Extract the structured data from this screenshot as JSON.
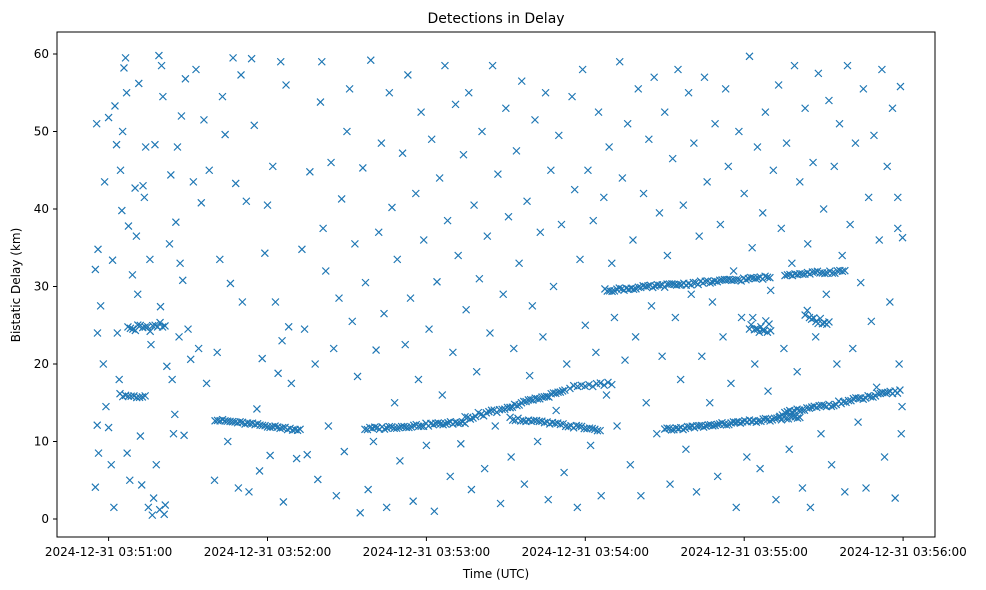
{
  "chart_data": {
    "type": "scatter",
    "title": "Detections in Delay",
    "xlabel": "Time (UTC)",
    "ylabel": "Bistatic Delay (km)",
    "x_unit": "seconds since 2024-12-31 03:51:00",
    "xlim": [
      -19,
      312
    ],
    "ylim": [
      -2.6,
      62.8
    ],
    "grid": false,
    "marker": "x",
    "color": "#1f77b4",
    "x_ticks": [
      {
        "value": 0,
        "label": "2024-12-31 03:51:00"
      },
      {
        "value": 60,
        "label": "2024-12-31 03:52:00"
      },
      {
        "value": 120,
        "label": "2024-12-31 03:53:00"
      },
      {
        "value": 180,
        "label": "2024-12-31 03:54:00"
      },
      {
        "value": 240,
        "label": "2024-12-31 03:55:00"
      },
      {
        "value": 300,
        "label": "2024-12-31 03:56:00"
      }
    ],
    "y_ticks": [
      {
        "value": 0,
        "label": "0"
      },
      {
        "value": 10,
        "label": "10"
      },
      {
        "value": 20,
        "label": "20"
      },
      {
        "value": 30,
        "label": "30"
      },
      {
        "value": 40,
        "label": "40"
      },
      {
        "value": 50,
        "label": "50"
      },
      {
        "value": 60,
        "label": "60"
      }
    ],
    "tracks": [
      {
        "t": [
          4.3,
          13.8
        ],
        "y": [
          16.0,
          15.7
        ],
        "n": 10,
        "spread": 0.2
      },
      {
        "t": [
          7.3,
          21.3
        ],
        "y": [
          24.5,
          25.0
        ],
        "n": 16,
        "spread": 0.6
      },
      {
        "t": [
          40.2,
          72.3
        ],
        "y": [
          12.8,
          11.5
        ],
        "n": 35,
        "spread": 0.15
      },
      {
        "t": [
          96.8,
          134.6
        ],
        "y": [
          11.6,
          12.5
        ],
        "n": 42,
        "spread": 0.2
      },
      {
        "t": [
          134.6,
          151.6
        ],
        "y": [
          13.0,
          14.5
        ],
        "n": 18,
        "spread": 0.3
      },
      {
        "t": [
          151.6,
          172.3
        ],
        "y": [
          14.5,
          16.5
        ],
        "n": 25,
        "spread": 0.2
      },
      {
        "t": [
          151.6,
          185.6
        ],
        "y": [
          13.0,
          11.5
        ],
        "n": 35,
        "spread": 0.2
      },
      {
        "t": [
          174.2,
          190.0
        ],
        "y": [
          17.0,
          17.5
        ],
        "n": 12,
        "spread": 0.2
      },
      {
        "t": [
          187.4,
          249.7
        ],
        "y": [
          29.5,
          31.2
        ],
        "n": 70,
        "spread": 0.2
      },
      {
        "t": [
          255.4,
          278.0
        ],
        "y": [
          31.5,
          32.0
        ],
        "n": 25,
        "spread": 0.2
      },
      {
        "t": [
          210.0,
          261.0
        ],
        "y": [
          11.5,
          13.2
        ],
        "n": 60,
        "spread": 0.2
      },
      {
        "t": [
          253.5,
          298.8
        ],
        "y": [
          13.5,
          16.5
        ],
        "n": 50,
        "spread": 0.25
      },
      {
        "t": [
          242.0,
          250.0
        ],
        "y": [
          25.0,
          25.0
        ],
        "n": 14,
        "spread": 1.0
      },
      {
        "t": [
          263.0,
          272.0
        ],
        "y": [
          26.0,
          26.0
        ],
        "n": 12,
        "spread": 1.0
      }
    ],
    "points": [
      [
        -5,
        4.1
      ],
      [
        -5,
        32.2
      ],
      [
        -4.5,
        51
      ],
      [
        -4.3,
        12.1
      ],
      [
        -4.2,
        24
      ],
      [
        -4,
        34.8
      ],
      [
        -3.8,
        8.5
      ],
      [
        -3,
        27.5
      ],
      [
        -2,
        20
      ],
      [
        -1.5,
        43.5
      ],
      [
        -1,
        14.5
      ],
      [
        0,
        11.8
      ],
      [
        0,
        51.8
      ],
      [
        1,
        7
      ],
      [
        1.5,
        33.4
      ],
      [
        2,
        1.5
      ],
      [
        2.4,
        53.3
      ],
      [
        3,
        48.3
      ],
      [
        3.3,
        24
      ],
      [
        4,
        18
      ],
      [
        4.5,
        45
      ],
      [
        5,
        39.8
      ],
      [
        5.3,
        50
      ],
      [
        5.8,
        58.2
      ],
      [
        6.4,
        59.5
      ],
      [
        6.8,
        55
      ],
      [
        7,
        8.5
      ],
      [
        7.5,
        37.8
      ],
      [
        8,
        5
      ],
      [
        9,
        31.5
      ],
      [
        10,
        42.7
      ],
      [
        10.5,
        36.5
      ],
      [
        11,
        29
      ],
      [
        11.4,
        56.2
      ],
      [
        12,
        10.7
      ],
      [
        12.5,
        4.4
      ],
      [
        13,
        43
      ],
      [
        13.5,
        41.5
      ],
      [
        14,
        48
      ],
      [
        15,
        1.5
      ],
      [
        15.6,
        33.5
      ],
      [
        16,
        22.5
      ],
      [
        16.5,
        0.5
      ],
      [
        17,
        2.7
      ],
      [
        17.5,
        48.3
      ],
      [
        18,
        7
      ],
      [
        19,
        59.8
      ],
      [
        19.3,
        1.2
      ],
      [
        19.6,
        27.4
      ],
      [
        20,
        58.5
      ],
      [
        20.5,
        54.5
      ],
      [
        21,
        0.6
      ],
      [
        21.4,
        1.8
      ],
      [
        22,
        19.7
      ],
      [
        23,
        35.5
      ],
      [
        23.5,
        44.4
      ],
      [
        24,
        18
      ],
      [
        24.5,
        11
      ],
      [
        25,
        13.5
      ],
      [
        25.4,
        38.3
      ],
      [
        26,
        48
      ],
      [
        26.6,
        23.5
      ],
      [
        27,
        33
      ],
      [
        27.5,
        52
      ],
      [
        28,
        30.8
      ],
      [
        28.5,
        10.8
      ],
      [
        29,
        56.8
      ],
      [
        30,
        24.5
      ],
      [
        31,
        20.6
      ],
      [
        32,
        43.5
      ],
      [
        33,
        58
      ],
      [
        34,
        22
      ],
      [
        35,
        40.8
      ],
      [
        36,
        51.5
      ],
      [
        37,
        17.5
      ],
      [
        38,
        45
      ],
      [
        40,
        5
      ],
      [
        41,
        21.5
      ],
      [
        42,
        33.5
      ],
      [
        43,
        54.5
      ],
      [
        44,
        49.6
      ],
      [
        45,
        10
      ],
      [
        46,
        30.4
      ],
      [
        47,
        59.5
      ],
      [
        48,
        43.3
      ],
      [
        49,
        4
      ],
      [
        50,
        57.3
      ],
      [
        50.5,
        28
      ],
      [
        52,
        41
      ],
      [
        53,
        3.5
      ],
      [
        54,
        59.4
      ],
      [
        55,
        50.8
      ],
      [
        56,
        14.2
      ],
      [
        57,
        6.2
      ],
      [
        58,
        20.7
      ],
      [
        59,
        34.3
      ],
      [
        60,
        40.5
      ],
      [
        61,
        8.2
      ],
      [
        62,
        45.5
      ],
      [
        63,
        28
      ],
      [
        64,
        18.8
      ],
      [
        65,
        59
      ],
      [
        65.5,
        23
      ],
      [
        66,
        2.2
      ],
      [
        67,
        56
      ],
      [
        68,
        24.8
      ],
      [
        69,
        17.5
      ],
      [
        71,
        7.8
      ],
      [
        73,
        34.8
      ],
      [
        74,
        24.5
      ],
      [
        75,
        8.3
      ],
      [
        76,
        44.8
      ],
      [
        78,
        20
      ],
      [
        79,
        5.1
      ],
      [
        80,
        53.8
      ],
      [
        80.5,
        59
      ],
      [
        81,
        37.5
      ],
      [
        82,
        32
      ],
      [
        83,
        12
      ],
      [
        84,
        46
      ],
      [
        85,
        22
      ],
      [
        86,
        3
      ],
      [
        87,
        28.5
      ],
      [
        88,
        41.3
      ],
      [
        89,
        8.7
      ],
      [
        90,
        50
      ],
      [
        91,
        55.5
      ],
      [
        92,
        25.5
      ],
      [
        93,
        35.5
      ],
      [
        94,
        18.4
      ],
      [
        95,
        0.8
      ],
      [
        96,
        45.3
      ],
      [
        97,
        30.5
      ],
      [
        98,
        3.8
      ],
      [
        99,
        59.2
      ],
      [
        100,
        10
      ],
      [
        101,
        21.8
      ],
      [
        102,
        37
      ],
      [
        103,
        48.5
      ],
      [
        104,
        26.5
      ],
      [
        105,
        1.5
      ],
      [
        106,
        55
      ],
      [
        107,
        40.2
      ],
      [
        108,
        15
      ],
      [
        109,
        33.5
      ],
      [
        110,
        7.5
      ],
      [
        111,
        47.2
      ],
      [
        112,
        22.5
      ],
      [
        113,
        57.3
      ],
      [
        114,
        28.5
      ],
      [
        115,
        2.3
      ],
      [
        116,
        42
      ],
      [
        117,
        18
      ],
      [
        118,
        52.5
      ],
      [
        119,
        36
      ],
      [
        120,
        9.5
      ],
      [
        121,
        24.5
      ],
      [
        122,
        49
      ],
      [
        123,
        1
      ],
      [
        124,
        30.6
      ],
      [
        125,
        44
      ],
      [
        126,
        16
      ],
      [
        127,
        58.5
      ],
      [
        128,
        38.5
      ],
      [
        129,
        5.5
      ],
      [
        130,
        21.5
      ],
      [
        131,
        53.5
      ],
      [
        132,
        34
      ],
      [
        133,
        9.7
      ],
      [
        134,
        47
      ],
      [
        135,
        27
      ],
      [
        136,
        55
      ],
      [
        137,
        3.8
      ],
      [
        138,
        40.5
      ],
      [
        139,
        19
      ],
      [
        140,
        31
      ],
      [
        141,
        50
      ],
      [
        142,
        6.5
      ],
      [
        143,
        36.5
      ],
      [
        144,
        24
      ],
      [
        145,
        58.5
      ],
      [
        146,
        12
      ],
      [
        147,
        44.5
      ],
      [
        148,
        2
      ],
      [
        149,
        29
      ],
      [
        150,
        53
      ],
      [
        151,
        39
      ],
      [
        152,
        8
      ],
      [
        153,
        22
      ],
      [
        154,
        47.5
      ],
      [
        155,
        33
      ],
      [
        156,
        56.5
      ],
      [
        157,
        4.5
      ],
      [
        158,
        41
      ],
      [
        159,
        18.5
      ],
      [
        160,
        27.5
      ],
      [
        161,
        51.5
      ],
      [
        162,
        10
      ],
      [
        163,
        37
      ],
      [
        164,
        23.5
      ],
      [
        165,
        55
      ],
      [
        166,
        2.5
      ],
      [
        167,
        45
      ],
      [
        168,
        30
      ],
      [
        169,
        14
      ],
      [
        170,
        49.5
      ],
      [
        171,
        38
      ],
      [
        172,
        6
      ],
      [
        173,
        20
      ],
      [
        175,
        54.5
      ],
      [
        176,
        42.5
      ],
      [
        177,
        1.5
      ],
      [
        178,
        33.5
      ],
      [
        179,
        58
      ],
      [
        180,
        25
      ],
      [
        181,
        45
      ],
      [
        182,
        9.5
      ],
      [
        183,
        38.5
      ],
      [
        184,
        21.5
      ],
      [
        185,
        52.5
      ],
      [
        186,
        3
      ],
      [
        187,
        41.5
      ],
      [
        188,
        16
      ],
      [
        189,
        48
      ],
      [
        190,
        33
      ],
      [
        191,
        26
      ],
      [
        192,
        12
      ],
      [
        193,
        59
      ],
      [
        194,
        44
      ],
      [
        195,
        20.5
      ],
      [
        196,
        51
      ],
      [
        197,
        7
      ],
      [
        198,
        36
      ],
      [
        199,
        23.5
      ],
      [
        200,
        55.5
      ],
      [
        201,
        3
      ],
      [
        202,
        42
      ],
      [
        203,
        15
      ],
      [
        204,
        49
      ],
      [
        205,
        27.5
      ],
      [
        206,
        57
      ],
      [
        207,
        11
      ],
      [
        208,
        39.5
      ],
      [
        209,
        21
      ],
      [
        210,
        52.5
      ],
      [
        211,
        34
      ],
      [
        212,
        4.5
      ],
      [
        213,
        46.5
      ],
      [
        214,
        26
      ],
      [
        215,
        58
      ],
      [
        216,
        18
      ],
      [
        217,
        40.5
      ],
      [
        218,
        9
      ],
      [
        219,
        55
      ],
      [
        220,
        29
      ],
      [
        221,
        48.5
      ],
      [
        222,
        3.5
      ],
      [
        223,
        36.5
      ],
      [
        224,
        21
      ],
      [
        225,
        57
      ],
      [
        226,
        43.5
      ],
      [
        227,
        15
      ],
      [
        228,
        28
      ],
      [
        229,
        51
      ],
      [
        230,
        5.5
      ],
      [
        231,
        38
      ],
      [
        232,
        23.5
      ],
      [
        233,
        55.5
      ],
      [
        234,
        45.5
      ],
      [
        235,
        17.5
      ],
      [
        236,
        32
      ],
      [
        237,
        1.5
      ],
      [
        238,
        50
      ],
      [
        239,
        26
      ],
      [
        240,
        42
      ],
      [
        241,
        8
      ],
      [
        242,
        59.7
      ],
      [
        243,
        35
      ],
      [
        244,
        20
      ],
      [
        245,
        48
      ],
      [
        246,
        6.5
      ],
      [
        247,
        39.5
      ],
      [
        248,
        52.5
      ],
      [
        249,
        16.5
      ],
      [
        250,
        29.5
      ],
      [
        251,
        45
      ],
      [
        252,
        2.5
      ],
      [
        253,
        56
      ],
      [
        254,
        37.5
      ],
      [
        255,
        22
      ],
      [
        256,
        48.5
      ],
      [
        257,
        9
      ],
      [
        258,
        33
      ],
      [
        259,
        58.5
      ],
      [
        260,
        19
      ],
      [
        261,
        43.5
      ],
      [
        262,
        4
      ],
      [
        263,
        53
      ],
      [
        264,
        35.5
      ],
      [
        265,
        1.5
      ],
      [
        266,
        46
      ],
      [
        267,
        23.5
      ],
      [
        268,
        57.5
      ],
      [
        269,
        11
      ],
      [
        270,
        40
      ],
      [
        271,
        29
      ],
      [
        272,
        54
      ],
      [
        273,
        7
      ],
      [
        274,
        45.5
      ],
      [
        275,
        20
      ],
      [
        276,
        51
      ],
      [
        277,
        34
      ],
      [
        278,
        3.5
      ],
      [
        279,
        58.5
      ],
      [
        280,
        38
      ],
      [
        281,
        22
      ],
      [
        282,
        48.5
      ],
      [
        283,
        12.5
      ],
      [
        284,
        30.5
      ],
      [
        285,
        55.5
      ],
      [
        286,
        4
      ],
      [
        287,
        41.5
      ],
      [
        288,
        25.5
      ],
      [
        289,
        49.5
      ],
      [
        290,
        17
      ],
      [
        291,
        36
      ],
      [
        292,
        58
      ],
      [
        293,
        8
      ],
      [
        294,
        45.5
      ],
      [
        295,
        28
      ],
      [
        296,
        53
      ],
      [
        297,
        2.7
      ],
      [
        298,
        37.5
      ],
      [
        298.5,
        20
      ],
      [
        299,
        55.8
      ],
      [
        299.3,
        11
      ],
      [
        299.6,
        14.5
      ],
      [
        299.8,
        36.3
      ],
      [
        298,
        41.5
      ]
    ]
  }
}
